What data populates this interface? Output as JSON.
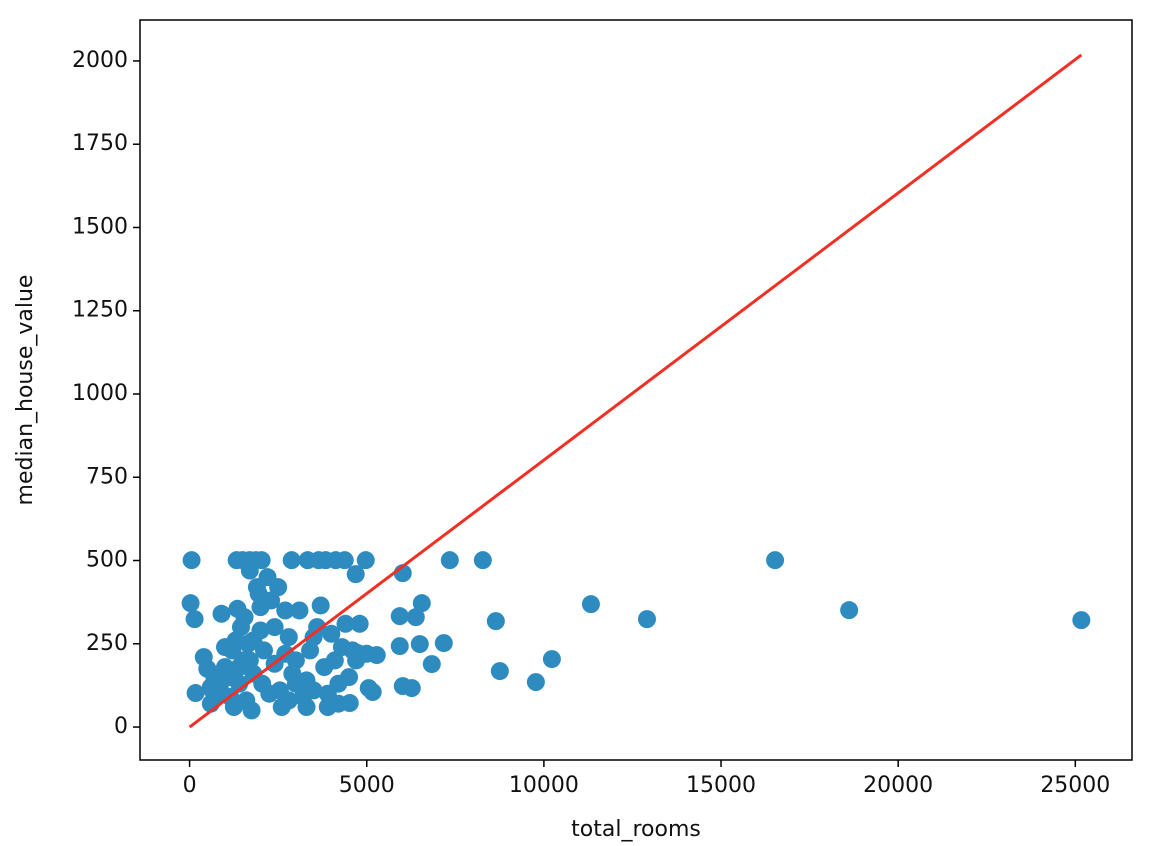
{
  "chart_data": {
    "type": "scatter",
    "x_label": "total_rooms",
    "y_label": "median_house_value",
    "xlim": [
      -1400,
      26600
    ],
    "ylim": [
      -99,
      2123
    ],
    "xticks": [
      0,
      5000,
      10000,
      15000,
      20000,
      25000
    ],
    "yticks": [
      0,
      250,
      500,
      750,
      1000,
      1250,
      1500,
      1750,
      2000
    ],
    "series": [
      {
        "type": "scatter",
        "color": "#2e8bc0",
        "x": [
          25170,
          18616,
          16525,
          12910,
          11328,
          10226,
          9774,
          8757,
          8644,
          8277,
          7345,
          7175,
          6836,
          6554,
          6497,
          6384,
          6271,
          6017,
          5932,
          5932,
          6017,
          5282,
          5169,
          5056,
          4972,
          4689,
          4746,
          4520,
          4379,
          4124,
          3842,
          3644,
          3333,
          2881,
          2034,
          1864,
          1695,
          1497,
          1328,
          56,
          28,
          141,
          169,
          400,
          500,
          650,
          800,
          900,
          1000,
          1100,
          1200,
          1300,
          1350,
          1400,
          1450,
          1500,
          1550,
          1600,
          1650,
          1700,
          1750,
          1800,
          1900,
          1950,
          2000,
          2050,
          2100,
          2200,
          2300,
          2400,
          2500,
          2550,
          2600,
          2700,
          2800,
          2900,
          3000,
          3100,
          3200,
          3300,
          3400,
          3500,
          3600,
          3700,
          3800,
          3900,
          4000,
          4100,
          4200,
          4300,
          4400,
          4500,
          4600,
          4800,
          5000,
          600,
          700,
          850,
          1150,
          1250,
          1700,
          2250,
          2800,
          3300,
          3900,
          4200,
          1000,
          2000,
          2700,
          3500,
          1800,
          2400,
          600,
          1400,
          3000,
          4700
        ],
        "values": [
          321,
          351,
          501,
          324,
          369,
          204,
          135,
          168,
          318,
          501,
          501,
          252,
          189,
          372,
          249,
          330,
          117,
          123,
          333,
          243,
          462,
          216,
          105,
          117,
          501,
          459,
          222,
          72,
          501,
          501,
          501,
          501,
          501,
          501,
          501,
          501,
          501,
          501,
          501,
          501,
          372,
          324,
          102,
          210,
          175,
          110,
          95,
          340,
          180,
          150,
          230,
          260,
          355,
          130,
          300,
          200,
          330,
          80,
          250,
          470,
          50,
          160,
          420,
          400,
          290,
          130,
          230,
          450,
          380,
          190,
          420,
          110,
          60,
          350,
          270,
          160,
          200,
          350,
          90,
          140,
          230,
          110,
          300,
          365,
          180,
          60,
          280,
          200,
          130,
          240,
          310,
          150,
          230,
          310,
          220,
          70,
          150,
          120,
          90,
          60,
          200,
          100,
          80,
          60,
          100,
          70,
          240,
          360,
          220,
          270,
          260,
          300,
          120,
          180,
          130,
          200
        ]
      },
      {
        "type": "line",
        "color": "#f03024",
        "x": [
          0,
          25170
        ],
        "values": [
          0,
          2018
        ]
      }
    ]
  }
}
